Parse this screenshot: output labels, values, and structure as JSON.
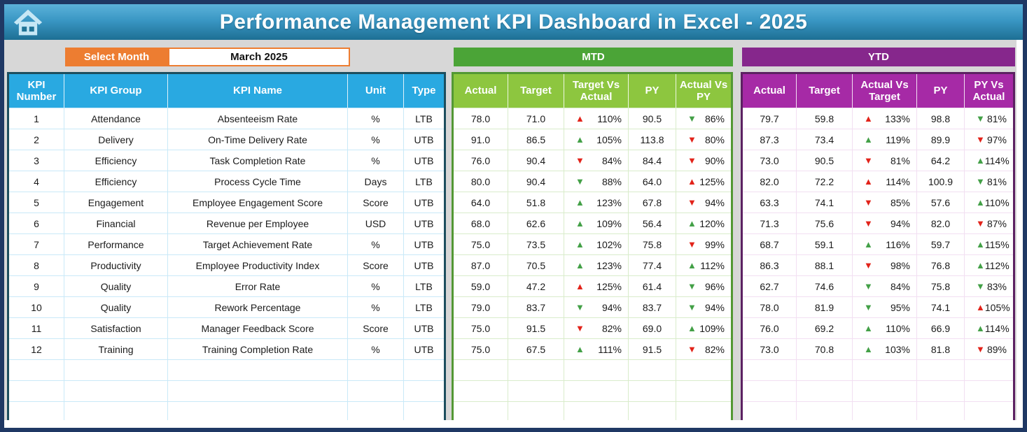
{
  "header": {
    "title": "Performance Management KPI Dashboard in Excel - 2025"
  },
  "controls": {
    "select_month_label": "Select Month",
    "selected_month": "March 2025"
  },
  "sections": {
    "mtd_label": "MTD",
    "ytd_label": "YTD"
  },
  "colors": {
    "frame_navy": "#1F3864",
    "header_blue_top": "#5cb2da",
    "header_blue_bottom": "#1d6f94",
    "canvas_gray": "#D7D7D7",
    "orange": "#ED7D31",
    "kpi_header_blue": "#29A9E1",
    "kpi_border": "#1D4E5E",
    "mtd_bar_green": "#4BA437",
    "mtd_header_green": "#8DC63F",
    "mtd_border": "#539834",
    "ytd_bar_purple": "#86278C",
    "ytd_header_purple": "#A62AA6",
    "ytd_border": "#5C2162",
    "arrow_red": "#E2231A",
    "arrow_green": "#43A047"
  },
  "kpi_table": {
    "headers": [
      "KPI Number",
      "KPI Group",
      "KPI Name",
      "Unit",
      "Type"
    ],
    "empty_rows": 3,
    "rows": [
      {
        "number": "1",
        "group": "Attendance",
        "name": "Absenteeism Rate",
        "unit": "%",
        "type": "LTB"
      },
      {
        "number": "2",
        "group": "Delivery",
        "name": "On-Time Delivery Rate",
        "unit": "%",
        "type": "UTB"
      },
      {
        "number": "3",
        "group": "Efficiency",
        "name": "Task Completion Rate",
        "unit": "%",
        "type": "UTB"
      },
      {
        "number": "4",
        "group": "Efficiency",
        "name": "Process Cycle Time",
        "unit": "Days",
        "type": "LTB"
      },
      {
        "number": "5",
        "group": "Engagement",
        "name": "Employee Engagement Score",
        "unit": "Score",
        "type": "UTB"
      },
      {
        "number": "6",
        "group": "Financial",
        "name": "Revenue per Employee",
        "unit": "USD",
        "type": "UTB"
      },
      {
        "number": "7",
        "group": "Performance",
        "name": "Target Achievement Rate",
        "unit": "%",
        "type": "UTB"
      },
      {
        "number": "8",
        "group": "Productivity",
        "name": "Employee Productivity Index",
        "unit": "Score",
        "type": "UTB"
      },
      {
        "number": "9",
        "group": "Quality",
        "name": "Error Rate",
        "unit": "%",
        "type": "LTB"
      },
      {
        "number": "10",
        "group": "Quality",
        "name": "Rework Percentage",
        "unit": "%",
        "type": "LTB"
      },
      {
        "number": "11",
        "group": "Satisfaction",
        "name": "Manager Feedback Score",
        "unit": "Score",
        "type": "UTB"
      },
      {
        "number": "12",
        "group": "Training",
        "name": "Training Completion Rate",
        "unit": "%",
        "type": "UTB"
      }
    ]
  },
  "mtd_table": {
    "headers": [
      "Actual",
      "Target",
      "Target Vs Actual",
      "PY",
      "Actual Vs PY"
    ],
    "empty_rows": 3,
    "rows": [
      {
        "actual": "78.0",
        "target": "71.0",
        "target_vs_actual": {
          "value": "110%",
          "arrow": "up",
          "color": "red"
        },
        "py": "90.5",
        "actual_vs_py": {
          "value": "86%",
          "arrow": "down",
          "color": "green"
        }
      },
      {
        "actual": "91.0",
        "target": "86.5",
        "target_vs_actual": {
          "value": "105%",
          "arrow": "up",
          "color": "green"
        },
        "py": "113.8",
        "actual_vs_py": {
          "value": "80%",
          "arrow": "down",
          "color": "red"
        }
      },
      {
        "actual": "76.0",
        "target": "90.4",
        "target_vs_actual": {
          "value": "84%",
          "arrow": "down",
          "color": "red"
        },
        "py": "84.4",
        "actual_vs_py": {
          "value": "90%",
          "arrow": "down",
          "color": "red"
        }
      },
      {
        "actual": "80.0",
        "target": "90.4",
        "target_vs_actual": {
          "value": "88%",
          "arrow": "down",
          "color": "green"
        },
        "py": "64.0",
        "actual_vs_py": {
          "value": "125%",
          "arrow": "up",
          "color": "red"
        }
      },
      {
        "actual": "64.0",
        "target": "51.8",
        "target_vs_actual": {
          "value": "123%",
          "arrow": "up",
          "color": "green"
        },
        "py": "67.8",
        "actual_vs_py": {
          "value": "94%",
          "arrow": "down",
          "color": "red"
        }
      },
      {
        "actual": "68.0",
        "target": "62.6",
        "target_vs_actual": {
          "value": "109%",
          "arrow": "up",
          "color": "green"
        },
        "py": "56.4",
        "actual_vs_py": {
          "value": "120%",
          "arrow": "up",
          "color": "green"
        }
      },
      {
        "actual": "75.0",
        "target": "73.5",
        "target_vs_actual": {
          "value": "102%",
          "arrow": "up",
          "color": "green"
        },
        "py": "75.8",
        "actual_vs_py": {
          "value": "99%",
          "arrow": "down",
          "color": "red"
        }
      },
      {
        "actual": "87.0",
        "target": "70.5",
        "target_vs_actual": {
          "value": "123%",
          "arrow": "up",
          "color": "green"
        },
        "py": "77.4",
        "actual_vs_py": {
          "value": "112%",
          "arrow": "up",
          "color": "green"
        }
      },
      {
        "actual": "59.0",
        "target": "47.2",
        "target_vs_actual": {
          "value": "125%",
          "arrow": "up",
          "color": "red"
        },
        "py": "61.4",
        "actual_vs_py": {
          "value": "96%",
          "arrow": "down",
          "color": "green"
        }
      },
      {
        "actual": "79.0",
        "target": "83.7",
        "target_vs_actual": {
          "value": "94%",
          "arrow": "down",
          "color": "green"
        },
        "py": "83.7",
        "actual_vs_py": {
          "value": "94%",
          "arrow": "down",
          "color": "green"
        }
      },
      {
        "actual": "75.0",
        "target": "91.5",
        "target_vs_actual": {
          "value": "82%",
          "arrow": "down",
          "color": "red"
        },
        "py": "69.0",
        "actual_vs_py": {
          "value": "109%",
          "arrow": "up",
          "color": "green"
        }
      },
      {
        "actual": "75.0",
        "target": "67.5",
        "target_vs_actual": {
          "value": "111%",
          "arrow": "up",
          "color": "green"
        },
        "py": "91.5",
        "actual_vs_py": {
          "value": "82%",
          "arrow": "down",
          "color": "red"
        }
      }
    ]
  },
  "ytd_table": {
    "headers": [
      "Actual",
      "Target",
      "Actual Vs Target",
      "PY",
      "PY Vs Actual"
    ],
    "empty_rows": 3,
    "rows": [
      {
        "actual": "79.7",
        "target": "59.8",
        "actual_vs_target": {
          "value": "133%",
          "arrow": "up",
          "color": "red"
        },
        "py": "98.8",
        "py_vs_actual": {
          "value": "81%",
          "arrow": "down",
          "color": "green"
        }
      },
      {
        "actual": "87.3",
        "target": "73.4",
        "actual_vs_target": {
          "value": "119%",
          "arrow": "up",
          "color": "green"
        },
        "py": "89.9",
        "py_vs_actual": {
          "value": "97%",
          "arrow": "down",
          "color": "red"
        }
      },
      {
        "actual": "73.0",
        "target": "90.5",
        "actual_vs_target": {
          "value": "81%",
          "arrow": "down",
          "color": "red"
        },
        "py": "64.2",
        "py_vs_actual": {
          "value": "114%",
          "arrow": "up",
          "color": "green"
        }
      },
      {
        "actual": "82.0",
        "target": "72.2",
        "actual_vs_target": {
          "value": "114%",
          "arrow": "up",
          "color": "red"
        },
        "py": "100.9",
        "py_vs_actual": {
          "value": "81%",
          "arrow": "down",
          "color": "green"
        }
      },
      {
        "actual": "63.3",
        "target": "74.1",
        "actual_vs_target": {
          "value": "85%",
          "arrow": "down",
          "color": "red"
        },
        "py": "57.6",
        "py_vs_actual": {
          "value": "110%",
          "arrow": "up",
          "color": "green"
        }
      },
      {
        "actual": "71.3",
        "target": "75.6",
        "actual_vs_target": {
          "value": "94%",
          "arrow": "down",
          "color": "red"
        },
        "py": "82.0",
        "py_vs_actual": {
          "value": "87%",
          "arrow": "down",
          "color": "red"
        }
      },
      {
        "actual": "68.7",
        "target": "59.1",
        "actual_vs_target": {
          "value": "116%",
          "arrow": "up",
          "color": "green"
        },
        "py": "59.7",
        "py_vs_actual": {
          "value": "115%",
          "arrow": "up",
          "color": "green"
        }
      },
      {
        "actual": "86.3",
        "target": "88.1",
        "actual_vs_target": {
          "value": "98%",
          "arrow": "down",
          "color": "red"
        },
        "py": "76.8",
        "py_vs_actual": {
          "value": "112%",
          "arrow": "up",
          "color": "green"
        }
      },
      {
        "actual": "62.7",
        "target": "74.6",
        "actual_vs_target": {
          "value": "84%",
          "arrow": "down",
          "color": "green"
        },
        "py": "75.8",
        "py_vs_actual": {
          "value": "83%",
          "arrow": "down",
          "color": "green"
        }
      },
      {
        "actual": "78.0",
        "target": "81.9",
        "actual_vs_target": {
          "value": "95%",
          "arrow": "down",
          "color": "green"
        },
        "py": "74.1",
        "py_vs_actual": {
          "value": "105%",
          "arrow": "up",
          "color": "red"
        }
      },
      {
        "actual": "76.0",
        "target": "69.2",
        "actual_vs_target": {
          "value": "110%",
          "arrow": "up",
          "color": "green"
        },
        "py": "66.9",
        "py_vs_actual": {
          "value": "114%",
          "arrow": "up",
          "color": "green"
        }
      },
      {
        "actual": "73.0",
        "target": "70.8",
        "actual_vs_target": {
          "value": "103%",
          "arrow": "up",
          "color": "green"
        },
        "py": "81.8",
        "py_vs_actual": {
          "value": "89%",
          "arrow": "down",
          "color": "red"
        }
      }
    ]
  }
}
